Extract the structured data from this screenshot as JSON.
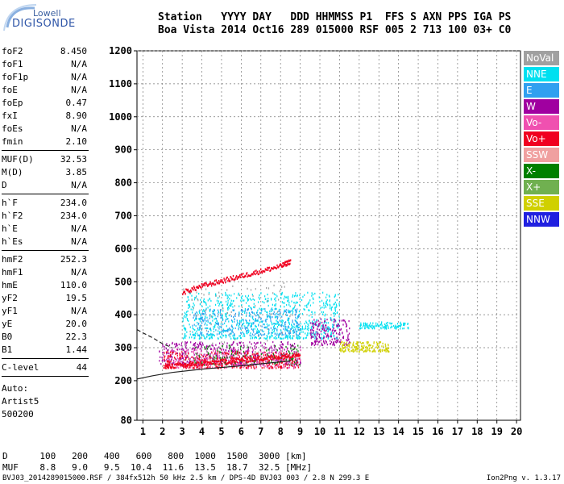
{
  "logo": {
    "line1": "Lowell",
    "line2": "DIGISONDE"
  },
  "header": {
    "labels": [
      "Station",
      "YYYY",
      "DAY",
      "DDD",
      "HHMMSS",
      "P1",
      "FFS",
      "S",
      "AXN",
      "PPS",
      "IGA",
      "PS"
    ],
    "values": [
      "Boa Vista",
      "2014",
      "Oct16",
      "289",
      "015000",
      "RSF",
      "005",
      "2",
      "713",
      "100",
      "03+",
      "C0"
    ]
  },
  "params_group1": [
    {
      "label": "foF2",
      "value": "8.450"
    },
    {
      "label": "foF1",
      "value": "N/A"
    },
    {
      "label": "foF1p",
      "value": "N/A"
    },
    {
      "label": "foE",
      "value": "N/A"
    },
    {
      "label": "foEp",
      "value": "0.47"
    },
    {
      "label": "fxI",
      "value": "8.90"
    },
    {
      "label": "foEs",
      "value": "N/A"
    },
    {
      "label": "fmin",
      "value": "2.10"
    }
  ],
  "params_group2": [
    {
      "label": "MUF(D)",
      "value": "32.53"
    },
    {
      "label": "M(D)",
      "value": "3.85"
    },
    {
      "label": "D",
      "value": "N/A"
    }
  ],
  "params_group3": [
    {
      "label": "h`F",
      "value": "234.0"
    },
    {
      "label": "h`F2",
      "value": "234.0"
    },
    {
      "label": "h`E",
      "value": "N/A"
    },
    {
      "label": "h`Es",
      "value": "N/A"
    }
  ],
  "params_group4": [
    {
      "label": "hmF2",
      "value": "252.3"
    },
    {
      "label": "hmF1",
      "value": "N/A"
    },
    {
      "label": "hmE",
      "value": "110.0"
    },
    {
      "label": "yF2",
      "value": "19.5"
    },
    {
      "label": "yF1",
      "value": "N/A"
    },
    {
      "label": "yE",
      "value": "20.0"
    },
    {
      "label": "B0",
      "value": "22.3"
    },
    {
      "label": "B1",
      "value": "1.44"
    }
  ],
  "params_group5": [
    {
      "label": "C-level",
      "value": "44"
    }
  ],
  "auto_text": {
    "line1": "Auto:",
    "line2": "Artist5",
    "line3": "500200"
  },
  "legend": [
    {
      "label": "NoVal",
      "color": "#a0a0a0"
    },
    {
      "label": "NNE",
      "color": "#00e0f0"
    },
    {
      "label": "E",
      "color": "#30a0f0"
    },
    {
      "label": "W",
      "color": "#a000a0"
    },
    {
      "label": "Vo-",
      "color": "#f050b0"
    },
    {
      "label": "Vo+",
      "color": "#f00020"
    },
    {
      "label": "SSW",
      "color": "#f0a0a0"
    },
    {
      "label": "X-",
      "color": "#008000"
    },
    {
      "label": "X+",
      "color": "#70b050"
    },
    {
      "label": "SSE",
      "color": "#d0d000"
    },
    {
      "label": "NNW",
      "color": "#2020e0"
    }
  ],
  "bottom_table": {
    "row1_label": "D",
    "row1_values": [
      "100",
      "200",
      "400",
      "600",
      "800",
      "1000",
      "1500",
      "3000"
    ],
    "row1_unit": "[km]",
    "row2_label": "MUF",
    "row2_values": [
      "8.8",
      "9.0",
      "9.5",
      "10.4",
      "11.6",
      "13.5",
      "18.7",
      "32.5"
    ],
    "row2_unit": "[MHz]"
  },
  "footer": {
    "left": "BVJ03_2014289015000.RSF / 384fx512h 50 kHz 2.5 km / DPS-4D BVJ03 003 / 2.8 N 299.3 E",
    "right": "Ion2Png v. 1.3.17"
  },
  "chart_data": {
    "type": "scatter",
    "title": "",
    "xlabel": "",
    "ylabel": "",
    "xlim": [
      0.7,
      20.2
    ],
    "ylim": [
      80,
      1200
    ],
    "xticks": [
      1,
      2,
      3,
      4,
      5,
      6,
      7,
      8,
      9,
      10,
      11,
      12,
      13,
      14,
      15,
      16,
      17,
      18,
      19,
      20
    ],
    "yticks": [
      80,
      200,
      300,
      400,
      500,
      600,
      700,
      800,
      900,
      1000,
      1100,
      1200
    ],
    "grid": true,
    "x_unit": "MHz",
    "y_unit": "km",
    "clusters": [
      {
        "name": "NNE",
        "color": "#00e0f0",
        "x": [
          3.0,
          11.0
        ],
        "y": [
          330,
          470
        ],
        "density": 900
      },
      {
        "name": "NNE",
        "color": "#00e0f0",
        "x": [
          12.0,
          14.5
        ],
        "y": [
          360,
          380
        ],
        "density": 120
      },
      {
        "name": "E",
        "color": "#30a0f0",
        "x": [
          3.5,
          9.0
        ],
        "y": [
          340,
          420
        ],
        "density": 300
      },
      {
        "name": "W",
        "color": "#a000a0",
        "x": [
          1.8,
          9.0
        ],
        "y": [
          250,
          320
        ],
        "density": 500
      },
      {
        "name": "W",
        "color": "#a000a0",
        "x": [
          9.5,
          11.5
        ],
        "y": [
          310,
          390
        ],
        "density": 200
      },
      {
        "name": "Vo-",
        "color": "#f050b0",
        "x": [
          2.2,
          9.0
        ],
        "y": [
          240,
          300
        ],
        "density": 300
      },
      {
        "name": "Vo+",
        "color": "#f00020",
        "x": [
          2.0,
          9.0
        ],
        "y": [
          240,
          290
        ],
        "density": 350
      },
      {
        "name": "SSE",
        "color": "#d0d000",
        "x": [
          11.0,
          13.5
        ],
        "y": [
          290,
          320
        ],
        "density": 180
      },
      {
        "name": "X-",
        "color": "#008000",
        "x": [
          3.5,
          9.0
        ],
        "y": [
          250,
          310
        ],
        "density": 120
      },
      {
        "name": "NoVal",
        "color": "#a0a0a0",
        "x": [
          3.0,
          9.0
        ],
        "y": [
          250,
          500
        ],
        "density": 120
      }
    ],
    "traces": [
      {
        "name": "Vo+",
        "color": "#f00020",
        "points": [
          [
            3.0,
            470
          ],
          [
            4.0,
            490
          ],
          [
            5.0,
            505
          ],
          [
            6.0,
            520
          ],
          [
            7.0,
            535
          ],
          [
            8.0,
            550
          ],
          [
            8.5,
            565
          ]
        ]
      },
      {
        "name": "Vo+",
        "color": "#f00020",
        "points": [
          [
            2.1,
            245
          ],
          [
            3.0,
            250
          ],
          [
            4.0,
            255
          ],
          [
            5.0,
            260
          ],
          [
            6.0,
            265
          ],
          [
            7.0,
            270
          ],
          [
            8.0,
            275
          ],
          [
            9.0,
            285
          ]
        ]
      }
    ],
    "model_curves": [
      {
        "name": "profile-dashed",
        "style": "dashed",
        "points": [
          [
            0.7,
            355
          ],
          [
            1.0,
            345
          ],
          [
            1.5,
            330
          ],
          [
            2.0,
            312
          ],
          [
            2.5,
            300
          ]
        ]
      },
      {
        "name": "profile-solid",
        "style": "solid",
        "points": [
          [
            0.7,
            205
          ],
          [
            1.5,
            215
          ],
          [
            2.5,
            225
          ],
          [
            4.0,
            235
          ],
          [
            6.0,
            245
          ],
          [
            8.5,
            260
          ]
        ]
      }
    ]
  }
}
